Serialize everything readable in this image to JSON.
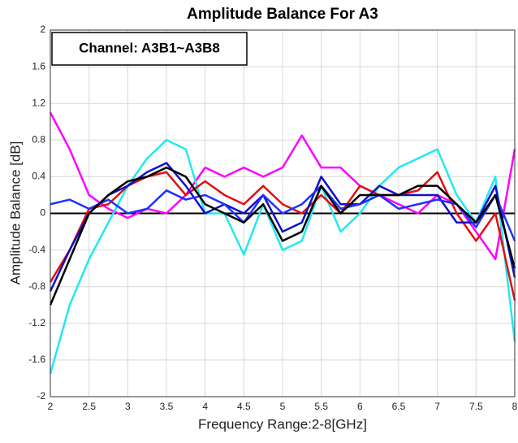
{
  "chart_data": {
    "type": "line",
    "title": "Amplitude Balance For A3",
    "xlabel": "Frequency Range:2-8[GHz]",
    "ylabel": "Amplitude Balance [dB]",
    "annotation": "Channel: A3B1~A3B8",
    "x": [
      2,
      2.25,
      2.5,
      2.75,
      3,
      3.25,
      3.5,
      3.75,
      4,
      4.25,
      4.5,
      4.75,
      5,
      5.25,
      5.5,
      5.75,
      6,
      6.25,
      6.5,
      6.75,
      7,
      7.25,
      7.5,
      7.75,
      8
    ],
    "series": [
      {
        "color": "#ff00ff",
        "values": [
          1.1,
          0.7,
          0.2,
          0.05,
          -0.05,
          0.05,
          0.0,
          0.2,
          0.5,
          0.4,
          0.5,
          0.4,
          0.5,
          0.85,
          0.5,
          0.5,
          0.3,
          0.2,
          0.1,
          0.0,
          0.2,
          0.1,
          -0.2,
          -0.5,
          0.7
        ]
      },
      {
        "color": "#22e8f0",
        "values": [
          -1.75,
          -1.0,
          -0.5,
          -0.1,
          0.3,
          0.6,
          0.8,
          0.7,
          0.0,
          0.0,
          -0.45,
          0.1,
          -0.4,
          -0.3,
          0.3,
          -0.2,
          0.0,
          0.3,
          0.5,
          0.6,
          0.7,
          0.2,
          -0.1,
          0.4,
          -1.4
        ]
      },
      {
        "color": "#e01010",
        "values": [
          -0.75,
          -0.4,
          0.05,
          0.1,
          0.3,
          0.4,
          0.45,
          0.2,
          0.35,
          0.2,
          0.1,
          0.3,
          0.1,
          0.0,
          0.2,
          0.0,
          0.3,
          0.2,
          0.2,
          0.25,
          0.45,
          0.0,
          -0.3,
          0.0,
          -0.95
        ]
      },
      {
        "color": "#1010c8",
        "values": [
          -0.85,
          -0.4,
          0.0,
          0.2,
          0.3,
          0.45,
          0.55,
          0.3,
          0.0,
          0.1,
          0.0,
          0.2,
          -0.2,
          -0.1,
          0.4,
          0.1,
          0.1,
          0.3,
          0.2,
          0.2,
          0.2,
          -0.1,
          -0.1,
          0.3,
          -0.7
        ]
      },
      {
        "color": "#2030ff",
        "values": [
          0.1,
          0.15,
          0.05,
          0.15,
          0.0,
          0.05,
          0.25,
          0.15,
          0.2,
          0.1,
          -0.1,
          0.2,
          0.0,
          0.1,
          0.3,
          0.05,
          0.1,
          0.2,
          0.05,
          0.1,
          0.15,
          0.1,
          -0.15,
          0.2,
          -0.3
        ]
      },
      {
        "color": "#000000",
        "values": [
          -1.0,
          -0.5,
          0.0,
          0.2,
          0.35,
          0.4,
          0.5,
          0.4,
          0.1,
          0.0,
          -0.1,
          0.1,
          -0.3,
          -0.2,
          0.3,
          0.0,
          0.2,
          0.2,
          0.2,
          0.3,
          0.3,
          0.1,
          -0.1,
          0.2,
          -0.6
        ]
      }
    ],
    "reference_line": 0,
    "xlim": [
      2,
      8
    ],
    "ylim": [
      -2,
      2
    ],
    "xticks": [
      2,
      2.5,
      3,
      3.5,
      4,
      4.5,
      5,
      5.5,
      6,
      6.5,
      7,
      7.5,
      8
    ],
    "yticks": [
      -2,
      -1.6,
      -1.2,
      -0.8,
      -0.4,
      0,
      0.4,
      0.8,
      1.2,
      1.6,
      2
    ],
    "grid": true
  }
}
